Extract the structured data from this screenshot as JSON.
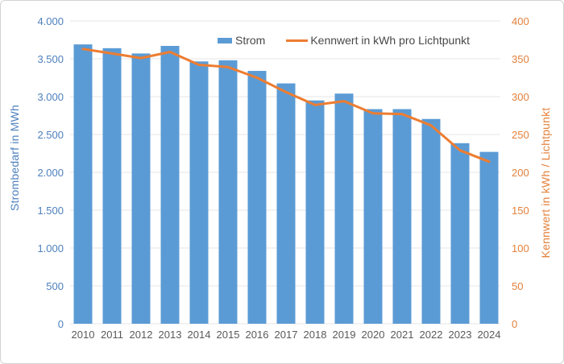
{
  "chart_data": {
    "type": "bar",
    "subtype": "combo-bar-line",
    "categories": [
      "2010",
      "2011",
      "2012",
      "2013",
      "2014",
      "2015",
      "2016",
      "2017",
      "2018",
      "2019",
      "2020",
      "2021",
      "2022",
      "2023",
      "2024"
    ],
    "series": [
      {
        "name": "Strom",
        "type": "bar",
        "axis": "left",
        "color": "#5b9bd5",
        "values": [
          3690,
          3640,
          3570,
          3670,
          3465,
          3480,
          3340,
          3175,
          2950,
          3040,
          2835,
          2835,
          2705,
          2385,
          2270
        ]
      },
      {
        "name": "Kennwert in kWh pro Lichtpunkt",
        "type": "line",
        "axis": "right",
        "color": "#ed7d31",
        "values": [
          363,
          357,
          351,
          359,
          342,
          339,
          325,
          306,
          289,
          294,
          278,
          277,
          262,
          229,
          214
        ]
      }
    ],
    "left_axis": {
      "title": "Strombedarf in MWh",
      "min": 0,
      "max": 4000,
      "step": 500,
      "tick_labels": [
        "0",
        "500",
        "1.000",
        "1.500",
        "2.000",
        "2.500",
        "3.000",
        "3.500",
        "4.000"
      ],
      "text_color": "#4e81bd"
    },
    "right_axis": {
      "title": "Kennwert in kWh / Lichtpunkt",
      "min": 0,
      "max": 400,
      "step": 50,
      "tick_labels": [
        "0",
        "50",
        "100",
        "150",
        "200",
        "250",
        "300",
        "350",
        "400"
      ],
      "text_color": "#e4813c"
    },
    "x_axis": {
      "text_color": "#595959"
    },
    "grid": true,
    "gridline_color": "#e5e5e5",
    "legend_position": "top"
  }
}
